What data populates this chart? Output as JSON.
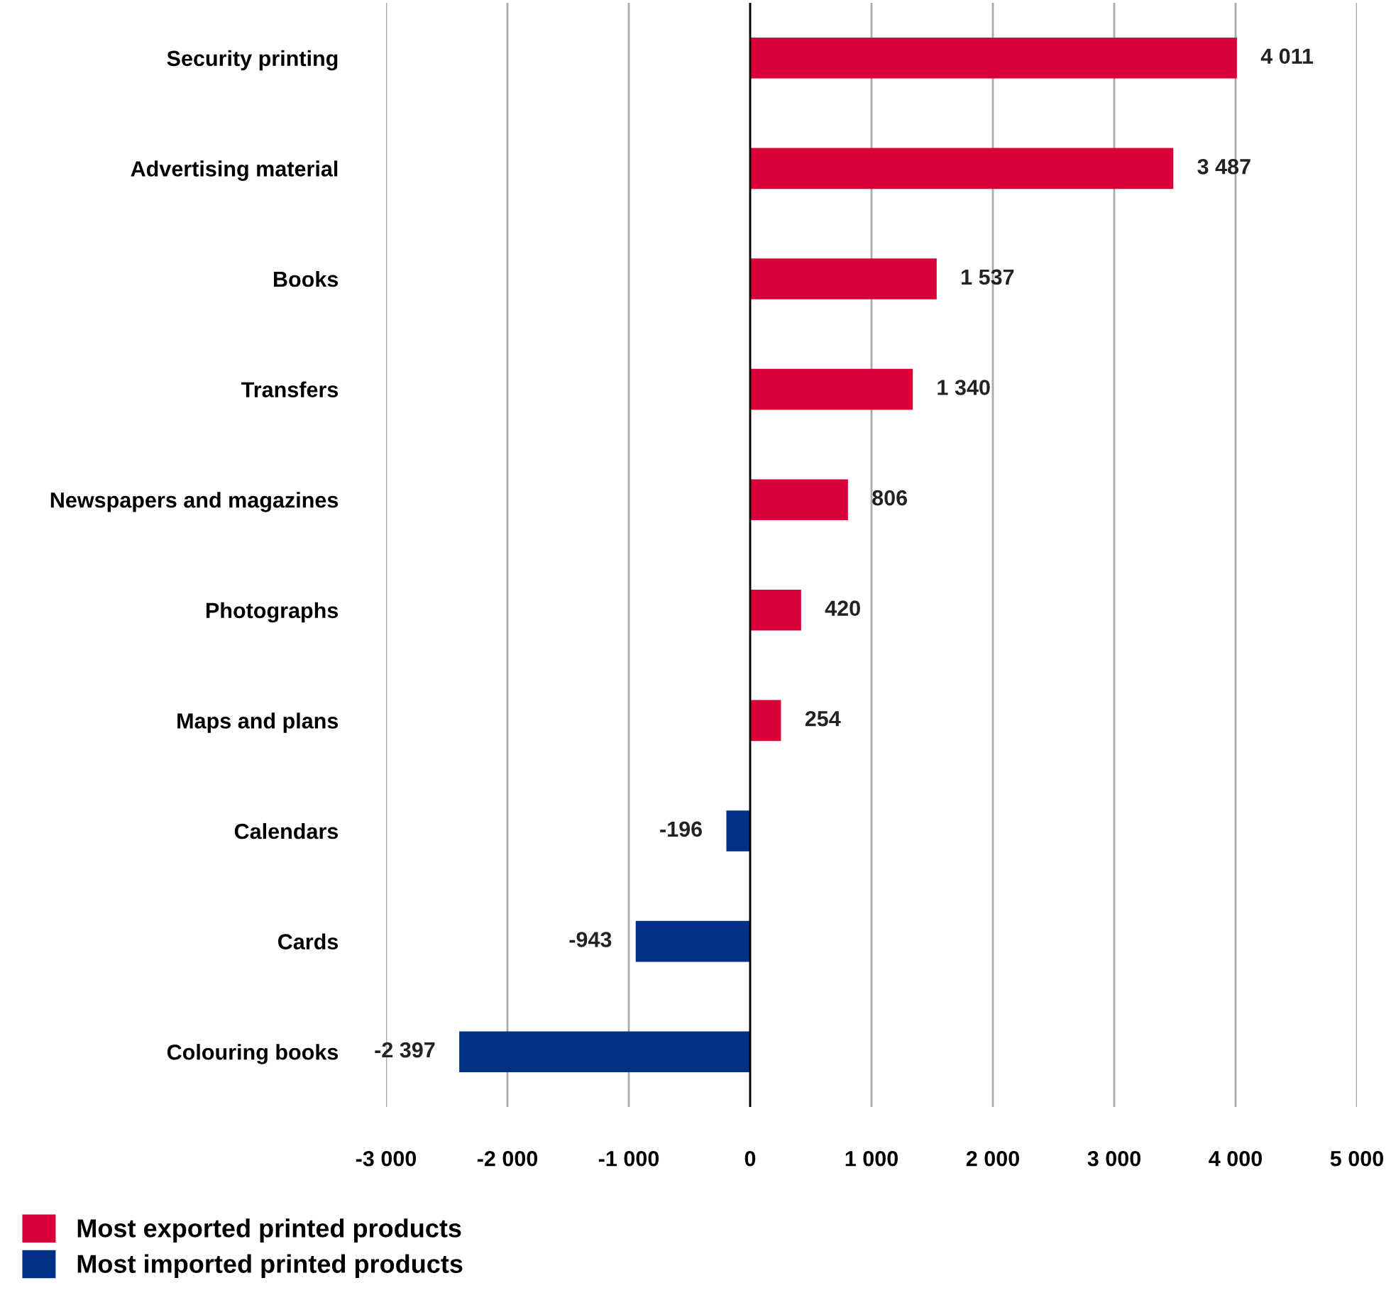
{
  "chart_data": {
    "type": "bar",
    "orientation": "horizontal",
    "categories": [
      "Security printing",
      "Advertising material",
      "Books",
      "Transfers",
      "Newspapers and magazines",
      "Photographs",
      "Maps and plans",
      "Calendars",
      "Cards",
      "Colouring books"
    ],
    "series": [
      {
        "name": "Most exported printed products",
        "color": "#d9003a",
        "values": [
          4011,
          3487,
          1537,
          1340,
          806,
          420,
          254,
          null,
          null,
          null
        ],
        "value_labels": [
          "4 011",
          "3 487",
          "1 537",
          "1 340",
          "806",
          "420",
          "254",
          null,
          null,
          null
        ]
      },
      {
        "name": "Most imported printed products",
        "color": "#003087",
        "values": [
          null,
          null,
          null,
          null,
          null,
          null,
          null,
          -196,
          -943,
          -2397
        ],
        "value_labels": [
          null,
          null,
          null,
          null,
          null,
          null,
          null,
          "-196",
          "-943",
          "-2 397"
        ]
      }
    ],
    "xlim": [
      -3000,
      5000
    ],
    "xticks": [
      {
        "value": -3000,
        "label": "-3 000"
      },
      {
        "value": -2000,
        "label": "-2 000"
      },
      {
        "value": -1000,
        "label": "-1 000"
      },
      0,
      {
        "value": 1000,
        "label": "1 000"
      },
      {
        "value": 2000,
        "label": "2 000"
      },
      {
        "value": 3000,
        "label": "3 000"
      },
      {
        "value": 4000,
        "label": "4 000"
      },
      {
        "value": 5000,
        "label": "5 000"
      }
    ],
    "grid": "x",
    "legend": "bottom left"
  }
}
